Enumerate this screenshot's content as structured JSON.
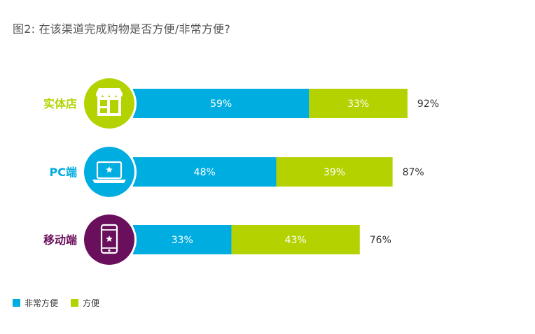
{
  "title": "图2: 在该渠道完成购物是否方便/非常方便?",
  "colors": {
    "very_convenient": "#00ADE0",
    "convenient": "#B4D200",
    "store": "#B4D200",
    "pc": "#00ADE0",
    "mobile": "#6A0F5C",
    "value_text": "#ffffff",
    "total_text": "#333333"
  },
  "legend": [
    {
      "label": "非常方便",
      "color": "#00ADE0"
    },
    {
      "label": "方便",
      "color": "#B4D200"
    }
  ],
  "chart_data": {
    "type": "bar",
    "orientation": "horizontal",
    "stacked": true,
    "title": "图2: 在该渠道完成购物是否方便/非常方便?",
    "categories": [
      "实体店",
      "PC端",
      "移动端"
    ],
    "category_colors": [
      "#B4D200",
      "#00ADE0",
      "#6A0F5C"
    ],
    "category_icons": [
      "store-icon",
      "laptop-icon",
      "smartphone-icon"
    ],
    "series": [
      {
        "name": "非常方便",
        "values": [
          59,
          48,
          33
        ],
        "labels": [
          "59%",
          "48%",
          "33%"
        ],
        "color": "#00ADE0"
      },
      {
        "name": "方便",
        "values": [
          33,
          39,
          43
        ],
        "labels": [
          "33%",
          "39%",
          "43%"
        ],
        "color": "#B4D200"
      }
    ],
    "totals": [
      92,
      87,
      76
    ],
    "total_labels": [
      "92%",
      "87%",
      "76%"
    ],
    "xlim": [
      0,
      100
    ],
    "grid": false,
    "legend_position": "bottom-left"
  }
}
